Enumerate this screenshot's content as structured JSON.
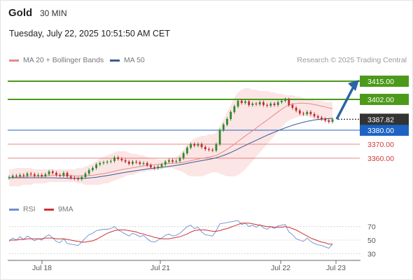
{
  "header": {
    "instrument": "Gold",
    "timeframe": "30 MIN",
    "datetime": "Tuesday, July 22, 2025 10:51:50 AM CET"
  },
  "legend": {
    "ma20_bb": "MA 20 + Bollinger Bands",
    "ma50": "MA 50",
    "credit": "Research © 2025 Trading Central"
  },
  "rsi_legend": {
    "rsi": "RSI",
    "ma9": "9MA"
  },
  "colors": {
    "resistance": "#4c9a1a",
    "pivot": "#1d63c4",
    "support": "#e06060",
    "current": "#333333",
    "ma20": "#e58a8a",
    "ma50": "#3b5998",
    "bands": "#fbe0e0",
    "candle_up": "#2b8a2b",
    "candle_down": "#c22a2a",
    "arrow": "#2a64a8",
    "rsi_line": "#6f8fd0",
    "rsi_ma": "#cc3333"
  },
  "chart_data": [
    {
      "type": "candlestick",
      "title": "Gold 30 MIN",
      "x_ticks": [
        "Jul 18",
        "Jul 21",
        "Jul 22",
        "Jul 23"
      ],
      "ylim": [
        3333,
        3425
      ],
      "current_price": 3387.82,
      "levels": [
        {
          "value": 3415.0,
          "label": "3415.00",
          "kind": "resistance"
        },
        {
          "value": 3402.0,
          "label": "3402.00",
          "kind": "resistance"
        },
        {
          "value": 3380.0,
          "label": "3380.00",
          "kind": "pivot"
        },
        {
          "value": 3370.0,
          "label": "3370.00",
          "kind": "support"
        },
        {
          "value": 3360.0,
          "label": "3360.00",
          "kind": "support"
        }
      ],
      "closes": [
        3346.5,
        3347.5,
        3347.0,
        3348.0,
        3347.5,
        3349.0,
        3348.5,
        3347.5,
        3348.0,
        3347.0,
        3348.5,
        3350.5,
        3349.5,
        3348.0,
        3347.5,
        3349.5,
        3347.0,
        3346.0,
        3345.5,
        3345.0,
        3346.5,
        3349.0,
        3351.5,
        3353.0,
        3355.5,
        3356.5,
        3357.0,
        3357.5,
        3358.0,
        3360.5,
        3359.5,
        3358.5,
        3357.5,
        3356.0,
        3357.5,
        3357.0,
        3356.0,
        3356.5,
        3355.0,
        3353.5,
        3353.0,
        3354.0,
        3355.5,
        3357.5,
        3358.5,
        3357.5,
        3358.0,
        3360.0,
        3363.5,
        3367.5,
        3370.0,
        3369.0,
        3370.0,
        3368.0,
        3366.5,
        3366.0,
        3365.5,
        3370.0,
        3380.0,
        3384.0,
        3388.0,
        3393.0,
        3397.0,
        3401.0,
        3399.5,
        3400.5,
        3398.0,
        3399.0,
        3398.5,
        3400.0,
        3398.0,
        3397.5,
        3399.0,
        3398.0,
        3400.0,
        3401.0,
        3402.0,
        3398.0,
        3396.0,
        3394.0,
        3392.0,
        3391.5,
        3393.0,
        3391.5,
        3390.0,
        3389.0,
        3388.0,
        3387.0,
        3386.0,
        3387.82
      ],
      "ma20": [
        3346.0,
        3346.2,
        3346.4,
        3346.6,
        3346.8,
        3347.0,
        3347.1,
        3347.1,
        3347.2,
        3347.2,
        3347.3,
        3347.5,
        3347.6,
        3347.6,
        3347.6,
        3347.7,
        3347.6,
        3347.5,
        3347.4,
        3347.3,
        3347.3,
        3347.4,
        3347.6,
        3347.8,
        3348.2,
        3348.6,
        3349.0,
        3349.5,
        3350.0,
        3350.7,
        3351.3,
        3351.8,
        3352.3,
        3352.7,
        3353.2,
        3353.6,
        3354.0,
        3354.5,
        3354.8,
        3355.1,
        3355.3,
        3355.6,
        3355.8,
        3356.1,
        3356.3,
        3356.4,
        3356.5,
        3356.7,
        3357.1,
        3357.6,
        3358.2,
        3358.8,
        3359.4,
        3359.9,
        3360.3,
        3360.8,
        3361.3,
        3362.1,
        3363.3,
        3364.8,
        3366.4,
        3368.2,
        3370.0,
        3372.0,
        3373.9,
        3375.9,
        3377.7,
        3379.6,
        3381.5,
        3383.5,
        3385.4,
        3387.2,
        3389.2,
        3391.1,
        3393.1,
        3394.9,
        3396.7,
        3397.9,
        3398.6,
        3399.0,
        3399.3,
        3399.3,
        3399.1,
        3398.8,
        3398.3,
        3397.8,
        3397.2,
        3396.6,
        3395.9,
        3395.3
      ],
      "ma50": [
        3346.0,
        3346.0,
        3346.0,
        3346.0,
        3346.0,
        3346.0,
        3346.0,
        3346.0,
        3346.0,
        3346.0,
        3346.0,
        3346.0,
        3346.0,
        3345.9,
        3345.8,
        3345.8,
        3345.7,
        3345.6,
        3345.6,
        3345.6,
        3345.6,
        3345.7,
        3345.9,
        3346.1,
        3346.4,
        3346.8,
        3347.2,
        3347.6,
        3348.0,
        3348.5,
        3349.0,
        3349.5,
        3349.9,
        3350.3,
        3350.7,
        3351.1,
        3351.5,
        3351.9,
        3352.3,
        3352.6,
        3352.9,
        3353.2,
        3353.5,
        3353.8,
        3354.2,
        3354.5,
        3354.9,
        3355.3,
        3355.8,
        3356.3,
        3356.8,
        3357.3,
        3357.8,
        3358.3,
        3358.7,
        3359.2,
        3359.7,
        3360.3,
        3361.1,
        3362.0,
        3363.0,
        3364.1,
        3365.3,
        3366.6,
        3367.9,
        3369.1,
        3370.4,
        3371.6,
        3372.8,
        3374.0,
        3375.2,
        3376.4,
        3377.5,
        3378.6,
        3379.6,
        3380.7,
        3381.7,
        3382.6,
        3383.5,
        3384.3,
        3385.0,
        3385.7,
        3386.3,
        3386.8,
        3387.3,
        3387.6,
        3387.9,
        3388.1,
        3388.3,
        3388.5
      ],
      "bb_upper": [
        3352,
        3352,
        3353,
        3353,
        3353,
        3353,
        3353,
        3352,
        3352,
        3352,
        3352,
        3352,
        3352,
        3352,
        3352,
        3352,
        3352,
        3352,
        3352,
        3353,
        3353,
        3354,
        3355,
        3356,
        3358,
        3360,
        3361,
        3362,
        3363,
        3364,
        3365,
        3365,
        3365,
        3364,
        3363,
        3363,
        3362,
        3362,
        3361,
        3360,
        3360,
        3359,
        3359,
        3359,
        3360,
        3360,
        3361,
        3363,
        3366,
        3369,
        3372,
        3374,
        3375,
        3376,
        3376,
        3377,
        3377,
        3378,
        3383,
        3388,
        3393,
        3398,
        3403,
        3407,
        3409,
        3410,
        3410,
        3409,
        3409,
        3408,
        3408,
        3408,
        3407,
        3407,
        3406,
        3406,
        3405,
        3405,
        3405,
        3404,
        3404,
        3403,
        3402,
        3402,
        3401,
        3401,
        3401,
        3400,
        3400,
        3400
      ],
      "bb_lower": [
        3340,
        3340,
        3340,
        3340,
        3341,
        3341,
        3341,
        3342,
        3342,
        3342,
        3342,
        3343,
        3343,
        3343,
        3343,
        3343,
        3343,
        3343,
        3343,
        3342,
        3342,
        3341,
        3341,
        3341,
        3341,
        3341,
        3342,
        3342,
        3343,
        3344,
        3345,
        3346,
        3347,
        3348,
        3348,
        3349,
        3350,
        3350,
        3351,
        3351,
        3351,
        3352,
        3352,
        3353,
        3353,
        3353,
        3352,
        3351,
        3350,
        3348,
        3347,
        3347,
        3347,
        3347,
        3348,
        3349,
        3350,
        3350,
        3349,
        3348,
        3347,
        3347,
        3347,
        3348,
        3350,
        3352,
        3355,
        3358,
        3361,
        3364,
        3367,
        3370,
        3373,
        3376,
        3379,
        3382,
        3385,
        3387,
        3388,
        3389,
        3390,
        3390,
        3390,
        3389,
        3388,
        3387,
        3387,
        3386,
        3386,
        3386
      ],
      "projection": {
        "from": 3387.82,
        "to": 3415.0
      }
    },
    {
      "type": "line",
      "title": "RSI",
      "ylim": [
        20,
        80
      ],
      "y_ticks": [
        70,
        50,
        30
      ],
      "series": [
        {
          "name": "RSI",
          "values": [
            48,
            53,
            50,
            55,
            51,
            56,
            53,
            49,
            52,
            50,
            55,
            58,
            53,
            48,
            46,
            52,
            45,
            44,
            43,
            42,
            47,
            53,
            58,
            60,
            64,
            65,
            66,
            66,
            67,
            70,
            65,
            62,
            59,
            56,
            60,
            58,
            55,
            57,
            52,
            48,
            47,
            50,
            53,
            57,
            59,
            56,
            57,
            60,
            65,
            70,
            72,
            67,
            69,
            62,
            58,
            57,
            56,
            64,
            74,
            75,
            76,
            77,
            78,
            79,
            73,
            75,
            70,
            72,
            69,
            73,
            68,
            66,
            70,
            67,
            71,
            72,
            73,
            62,
            58,
            52,
            50,
            48,
            53,
            48,
            45,
            43,
            42,
            40,
            38,
            44
          ]
        },
        {
          "name": "9MA",
          "values": [
            50,
            50,
            50,
            51,
            51,
            52,
            52,
            52,
            52,
            52,
            53,
            53,
            53,
            52,
            52,
            52,
            51,
            50,
            49,
            48,
            47,
            47,
            48,
            49,
            51,
            54,
            57,
            60,
            62,
            64,
            65,
            65,
            65,
            64,
            63,
            62,
            60,
            59,
            57,
            56,
            54,
            53,
            52,
            52,
            52,
            53,
            54,
            55,
            57,
            59,
            62,
            64,
            65,
            65,
            65,
            64,
            63,
            63,
            64,
            66,
            67,
            69,
            71,
            73,
            75,
            75,
            75,
            74,
            73,
            72,
            71,
            70,
            70,
            69,
            69,
            69,
            70,
            69,
            67,
            65,
            62,
            59,
            56,
            53,
            51,
            49,
            47,
            46,
            44,
            44
          ]
        }
      ]
    }
  ]
}
